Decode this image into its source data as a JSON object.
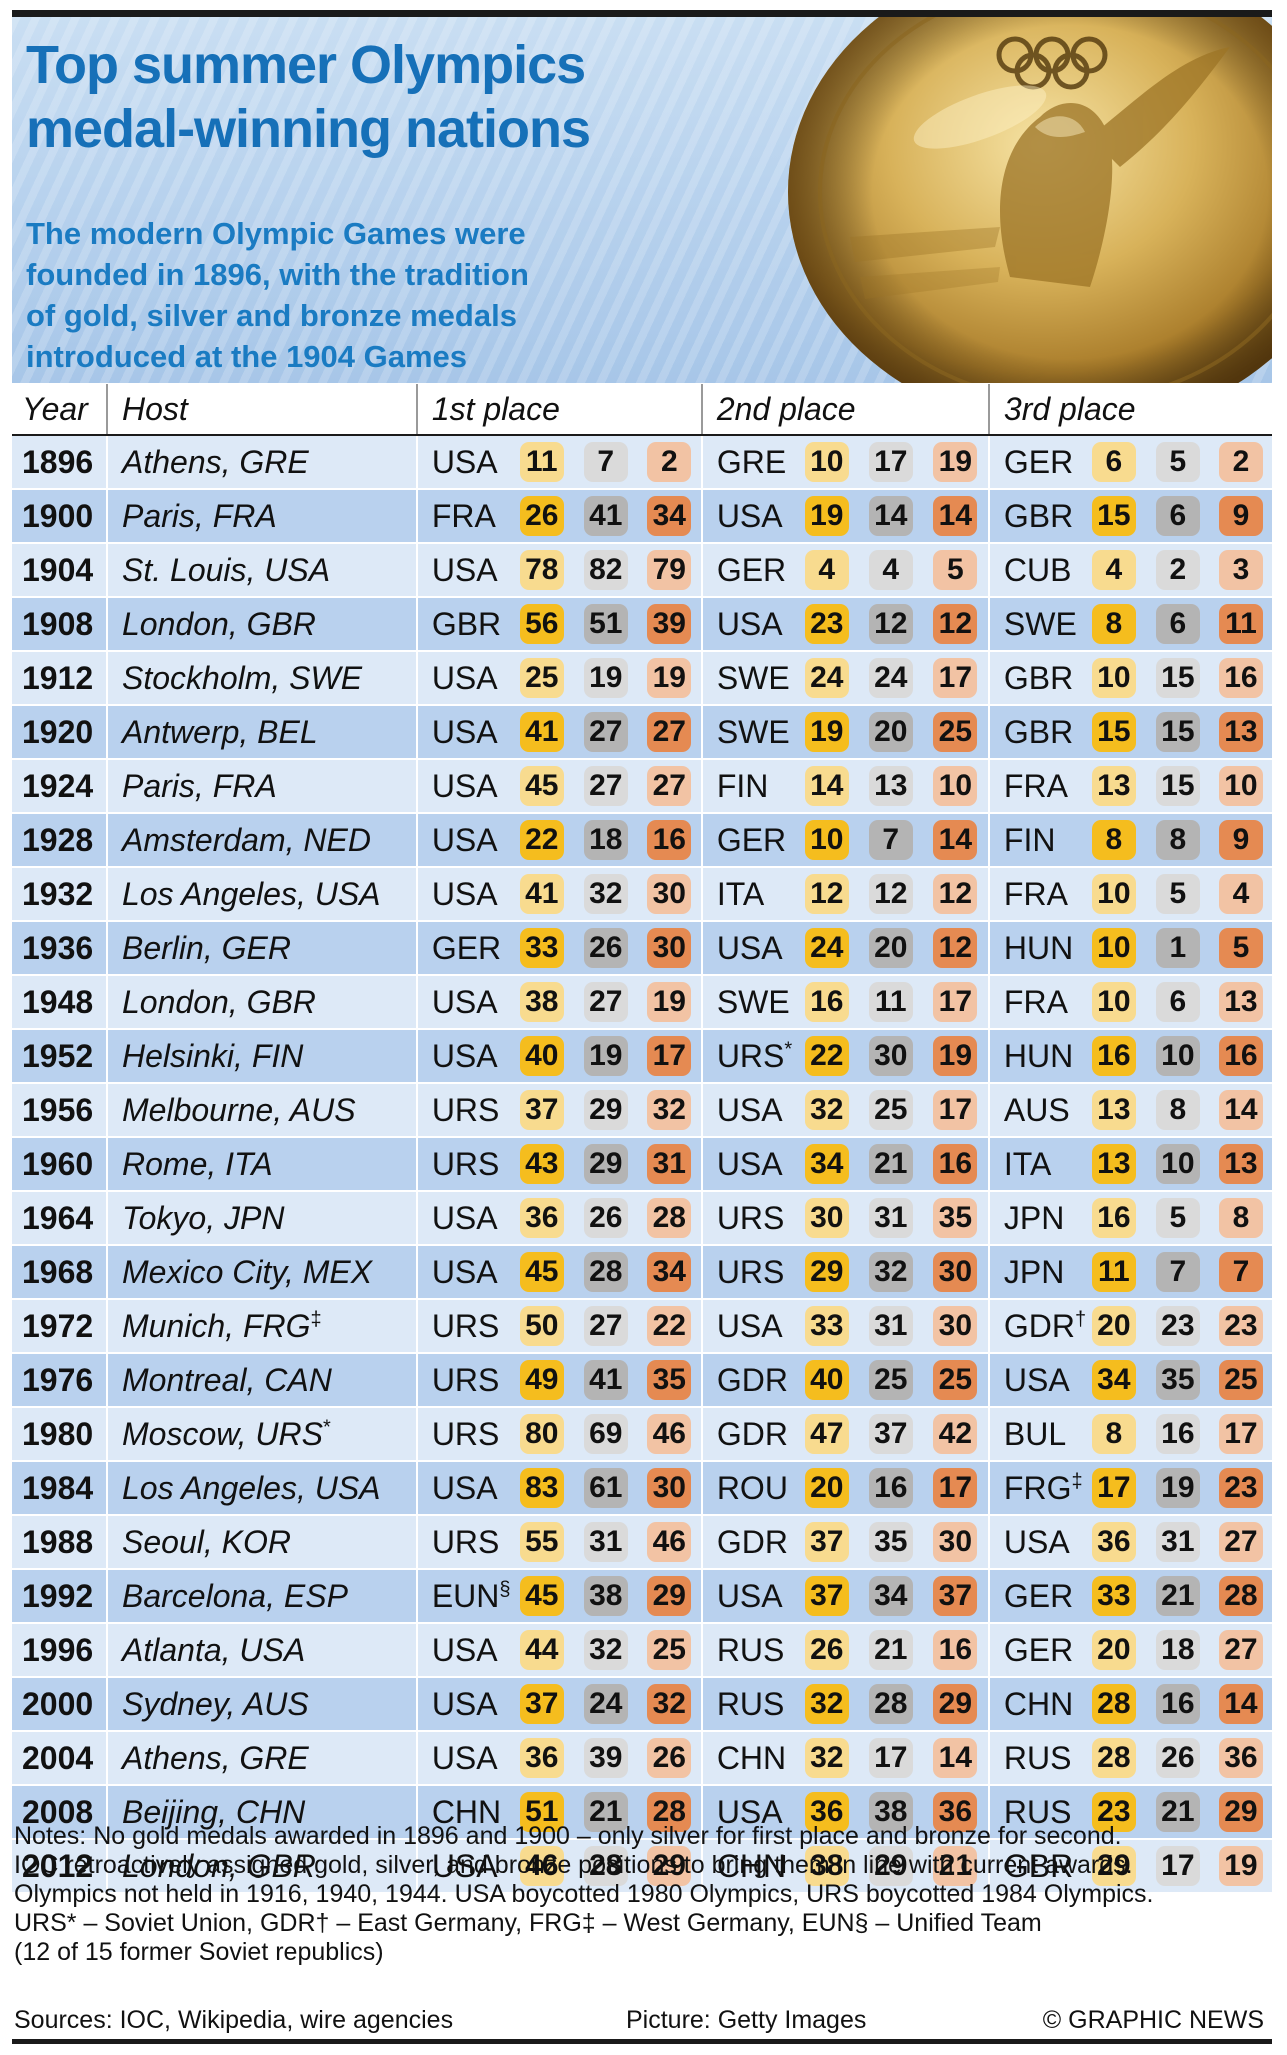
{
  "chart_data": {
    "type": "table",
    "title": [
      "Top summer Olympics",
      "medal-winning nations"
    ],
    "subtitle": [
      "The modern Olympic Games were",
      "founded in 1896, with the tradition",
      "of gold, silver and bronze medals",
      "introduced at the 1904 Games"
    ],
    "columns": [
      "Year",
      "Host",
      "1st place",
      "2nd place",
      "3rd place"
    ],
    "colors": {
      "gold": "#f5bd1e",
      "silver": "#b4b4b4",
      "bronze": "#e58a52",
      "title": "#1670b8",
      "row_light": "#dde9f7",
      "row_dark": "#b9d1ee"
    },
    "rows": [
      {
        "year": "1896",
        "host": "Athens, GRE",
        "hsup": "",
        "n1": "USA",
        "s1": "",
        "m1": [
          11,
          7,
          2
        ],
        "n2": "GRE",
        "s2": "",
        "m2": [
          10,
          17,
          19
        ],
        "n3": "GER",
        "s3": "",
        "m3": [
          6,
          5,
          2
        ]
      },
      {
        "year": "1900",
        "host": "Paris, FRA",
        "hsup": "",
        "n1": "FRA",
        "s1": "",
        "m1": [
          26,
          41,
          34
        ],
        "n2": "USA",
        "s2": "",
        "m2": [
          19,
          14,
          14
        ],
        "n3": "GBR",
        "s3": "",
        "m3": [
          15,
          6,
          9
        ]
      },
      {
        "year": "1904",
        "host": "St. Louis, USA",
        "hsup": "",
        "n1": "USA",
        "s1": "",
        "m1": [
          78,
          82,
          79
        ],
        "n2": "GER",
        "s2": "",
        "m2": [
          4,
          4,
          5
        ],
        "n3": "CUB",
        "s3": "",
        "m3": [
          4,
          2,
          3
        ]
      },
      {
        "year": "1908",
        "host": "London, GBR",
        "hsup": "",
        "n1": "GBR",
        "s1": "",
        "m1": [
          56,
          51,
          39
        ],
        "n2": "USA",
        "s2": "",
        "m2": [
          23,
          12,
          12
        ],
        "n3": "SWE",
        "s3": "",
        "m3": [
          8,
          6,
          11
        ]
      },
      {
        "year": "1912",
        "host": "Stockholm, SWE",
        "hsup": "",
        "n1": "USA",
        "s1": "",
        "m1": [
          25,
          19,
          19
        ],
        "n2": "SWE",
        "s2": "",
        "m2": [
          24,
          24,
          17
        ],
        "n3": "GBR",
        "s3": "",
        "m3": [
          10,
          15,
          16
        ]
      },
      {
        "year": "1920",
        "host": "Antwerp, BEL",
        "hsup": "",
        "n1": "USA",
        "s1": "",
        "m1": [
          41,
          27,
          27
        ],
        "n2": "SWE",
        "s2": "",
        "m2": [
          19,
          20,
          25
        ],
        "n3": "GBR",
        "s3": "",
        "m3": [
          15,
          15,
          13
        ]
      },
      {
        "year": "1924",
        "host": "Paris, FRA",
        "hsup": "",
        "n1": "USA",
        "s1": "",
        "m1": [
          45,
          27,
          27
        ],
        "n2": "FIN",
        "s2": "",
        "m2": [
          14,
          13,
          10
        ],
        "n3": "FRA",
        "s3": "",
        "m3": [
          13,
          15,
          10
        ]
      },
      {
        "year": "1928",
        "host": "Amsterdam, NED",
        "hsup": "",
        "n1": "USA",
        "s1": "",
        "m1": [
          22,
          18,
          16
        ],
        "n2": "GER",
        "s2": "",
        "m2": [
          10,
          7,
          14
        ],
        "n3": "FIN",
        "s3": "",
        "m3": [
          8,
          8,
          9
        ]
      },
      {
        "year": "1932",
        "host": "Los Angeles, USA",
        "hsup": "",
        "n1": "USA",
        "s1": "",
        "m1": [
          41,
          32,
          30
        ],
        "n2": "ITA",
        "s2": "",
        "m2": [
          12,
          12,
          12
        ],
        "n3": "FRA",
        "s3": "",
        "m3": [
          10,
          5,
          4
        ]
      },
      {
        "year": "1936",
        "host": "Berlin, GER",
        "hsup": "",
        "n1": "GER",
        "s1": "",
        "m1": [
          33,
          26,
          30
        ],
        "n2": "USA",
        "s2": "",
        "m2": [
          24,
          20,
          12
        ],
        "n3": "HUN",
        "s3": "",
        "m3": [
          10,
          1,
          5
        ]
      },
      {
        "year": "1948",
        "host": "London, GBR",
        "hsup": "",
        "n1": "USA",
        "s1": "",
        "m1": [
          38,
          27,
          19
        ],
        "n2": "SWE",
        "s2": "",
        "m2": [
          16,
          11,
          17
        ],
        "n3": "FRA",
        "s3": "",
        "m3": [
          10,
          6,
          13
        ]
      },
      {
        "year": "1952",
        "host": "Helsinki, FIN",
        "hsup": "",
        "n1": "USA",
        "s1": "",
        "m1": [
          40,
          19,
          17
        ],
        "n2": "URS",
        "s2": "*",
        "m2": [
          22,
          30,
          19
        ],
        "n3": "HUN",
        "s3": "",
        "m3": [
          16,
          10,
          16
        ]
      },
      {
        "year": "1956",
        "host": "Melbourne, AUS",
        "hsup": "",
        "n1": "URS",
        "s1": "",
        "m1": [
          37,
          29,
          32
        ],
        "n2": "USA",
        "s2": "",
        "m2": [
          32,
          25,
          17
        ],
        "n3": "AUS",
        "s3": "",
        "m3": [
          13,
          8,
          14
        ]
      },
      {
        "year": "1960",
        "host": "Rome, ITA",
        "hsup": "",
        "n1": "URS",
        "s1": "",
        "m1": [
          43,
          29,
          31
        ],
        "n2": "USA",
        "s2": "",
        "m2": [
          34,
          21,
          16
        ],
        "n3": "ITA",
        "s3": "",
        "m3": [
          13,
          10,
          13
        ]
      },
      {
        "year": "1964",
        "host": "Tokyo, JPN",
        "hsup": "",
        "n1": "USA",
        "s1": "",
        "m1": [
          36,
          26,
          28
        ],
        "n2": "URS",
        "s2": "",
        "m2": [
          30,
          31,
          35
        ],
        "n3": "JPN",
        "s3": "",
        "m3": [
          16,
          5,
          8
        ]
      },
      {
        "year": "1968",
        "host": "Mexico City, MEX",
        "hsup": "",
        "n1": "USA",
        "s1": "",
        "m1": [
          45,
          28,
          34
        ],
        "n2": "URS",
        "s2": "",
        "m2": [
          29,
          32,
          30
        ],
        "n3": "JPN",
        "s3": "",
        "m3": [
          11,
          7,
          7
        ]
      },
      {
        "year": "1972",
        "host": "Munich, FRG",
        "hsup": "‡",
        "n1": "URS",
        "s1": "",
        "m1": [
          50,
          27,
          22
        ],
        "n2": "USA",
        "s2": "",
        "m2": [
          33,
          31,
          30
        ],
        "n3": "GDR",
        "s3": "†",
        "m3": [
          20,
          23,
          23
        ]
      },
      {
        "year": "1976",
        "host": "Montreal, CAN",
        "hsup": "",
        "n1": "URS",
        "s1": "",
        "m1": [
          49,
          41,
          35
        ],
        "n2": "GDR",
        "s2": "",
        "m2": [
          40,
          25,
          25
        ],
        "n3": "USA",
        "s3": "",
        "m3": [
          34,
          35,
          25
        ]
      },
      {
        "year": "1980",
        "host": "Moscow, URS",
        "hsup": "*",
        "n1": "URS",
        "s1": "",
        "m1": [
          80,
          69,
          46
        ],
        "n2": "GDR",
        "s2": "",
        "m2": [
          47,
          37,
          42
        ],
        "n3": "BUL",
        "s3": "",
        "m3": [
          8,
          16,
          17
        ]
      },
      {
        "year": "1984",
        "host": "Los Angeles, USA",
        "hsup": "",
        "n1": "USA",
        "s1": "",
        "m1": [
          83,
          61,
          30
        ],
        "n2": "ROU",
        "s2": "",
        "m2": [
          20,
          16,
          17
        ],
        "n3": "FRG",
        "s3": "‡",
        "m3": [
          17,
          19,
          23
        ]
      },
      {
        "year": "1988",
        "host": "Seoul, KOR",
        "hsup": "",
        "n1": "URS",
        "s1": "",
        "m1": [
          55,
          31,
          46
        ],
        "n2": "GDR",
        "s2": "",
        "m2": [
          37,
          35,
          30
        ],
        "n3": "USA",
        "s3": "",
        "m3": [
          36,
          31,
          27
        ]
      },
      {
        "year": "1992",
        "host": "Barcelona, ESP",
        "hsup": "",
        "n1": "EUN",
        "s1": "§",
        "m1": [
          45,
          38,
          29
        ],
        "n2": "USA",
        "s2": "",
        "m2": [
          37,
          34,
          37
        ],
        "n3": "GER",
        "s3": "",
        "m3": [
          33,
          21,
          28
        ]
      },
      {
        "year": "1996",
        "host": "Atlanta, USA",
        "hsup": "",
        "n1": "USA",
        "s1": "",
        "m1": [
          44,
          32,
          25
        ],
        "n2": "RUS",
        "s2": "",
        "m2": [
          26,
          21,
          16
        ],
        "n3": "GER",
        "s3": "",
        "m3": [
          20,
          18,
          27
        ]
      },
      {
        "year": "2000",
        "host": "Sydney, AUS",
        "hsup": "",
        "n1": "USA",
        "s1": "",
        "m1": [
          37,
          24,
          32
        ],
        "n2": "RUS",
        "s2": "",
        "m2": [
          32,
          28,
          29
        ],
        "n3": "CHN",
        "s3": "",
        "m3": [
          28,
          16,
          14
        ]
      },
      {
        "year": "2004",
        "host": "Athens, GRE",
        "hsup": "",
        "n1": "USA",
        "s1": "",
        "m1": [
          36,
          39,
          26
        ],
        "n2": "CHN",
        "s2": "",
        "m2": [
          32,
          17,
          14
        ],
        "n3": "RUS",
        "s3": "",
        "m3": [
          28,
          26,
          36
        ]
      },
      {
        "year": "2008",
        "host": "Beijing, CHN",
        "hsup": "",
        "n1": "CHN",
        "s1": "",
        "m1": [
          51,
          21,
          28
        ],
        "n2": "USA",
        "s2": "",
        "m2": [
          36,
          38,
          36
        ],
        "n3": "RUS",
        "s3": "",
        "m3": [
          23,
          21,
          29
        ]
      },
      {
        "year": "2012",
        "host": "London, GBR",
        "hsup": "",
        "n1": "USA",
        "s1": "",
        "m1": [
          46,
          28,
          29
        ],
        "n2": "CHN",
        "s2": "",
        "m2": [
          38,
          29,
          21
        ],
        "n3": "GBR",
        "s3": "",
        "m3": [
          29,
          17,
          19
        ]
      }
    ]
  },
  "notes": [
    "Notes: No gold medals awarded in 1896 and 1900 – only silver for first place and bronze for second.",
    "IOC retroactively assigned gold, silver, and bronze positions to bring them in line with current awards.",
    "Olympics not held in 1916, 1940, 1944. USA boycotted 1980 Olympics, URS boycotted 1984 Olympics.",
    "URS* – Soviet Union, GDR† – East Germany, FRG‡ – West Germany, EUN§ – Unified Team",
    "(12 of 15 former Soviet republics)"
  ],
  "footer": {
    "sources": "Sources: IOC, Wikipedia, wire agencies",
    "picture": "Picture: Getty Images",
    "credit": "© GRAPHIC NEWS"
  }
}
